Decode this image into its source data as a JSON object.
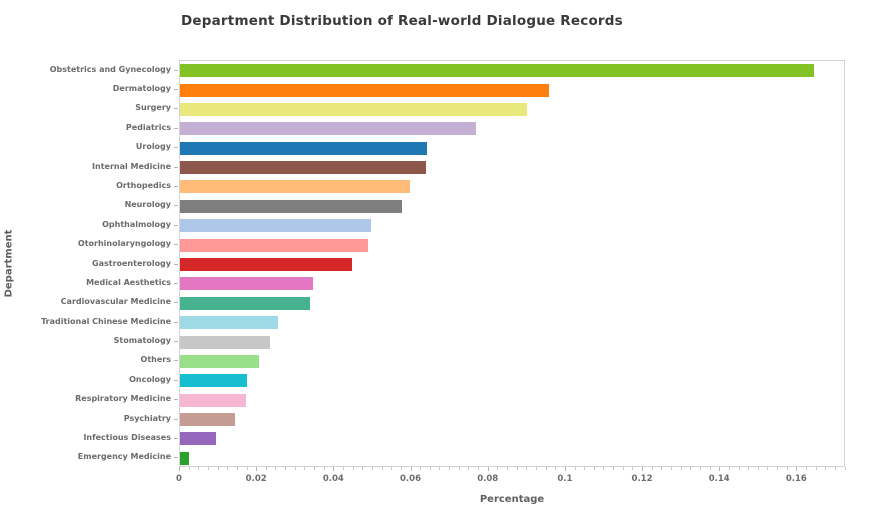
{
  "title": "Department Distribution of Real-world Dialogue Records",
  "chart_data": {
    "type": "bar",
    "orientation": "horizontal",
    "title": "Department Distribution of Real-world Dialogue Records",
    "xlabel": "Percentage",
    "ylabel": "Department",
    "xlim": [
      0,
      0.1726
    ],
    "grid": false,
    "legend": "none",
    "x_major_ticks": [
      0,
      0.02,
      0.04,
      0.06,
      0.08,
      0.1,
      0.12,
      0.14,
      0.16
    ],
    "x_major_tick_labels": [
      "0",
      "0.02",
      "0.04",
      "0.06",
      "0.08",
      "0.1",
      "0.12",
      "0.14",
      "0.16"
    ],
    "x_minor_tick_step": 0.0025,
    "categories": [
      "Obstetrics and Gynecology",
      "Dermatology",
      "Surgery",
      "Pediatrics",
      "Urology",
      "Internal Medicine",
      "Orthopedics",
      "Neurology",
      "Ophthalmology",
      "Otorhinolaryngology",
      "Gastroenterology",
      "Medical Aesthetics",
      "Cardiovascular Medicine",
      "Traditional Chinese Medicine",
      "Stomatology",
      "Others",
      "Oncology",
      "Respiratory Medicine",
      "Psychiatry",
      "Infectious Diseases",
      "Emergency Medicine"
    ],
    "values": [
      0.1643,
      0.0957,
      0.0899,
      0.0768,
      0.064,
      0.0638,
      0.0597,
      0.0576,
      0.0496,
      0.0486,
      0.0445,
      0.0344,
      0.0336,
      0.0253,
      0.0233,
      0.0204,
      0.0173,
      0.017,
      0.0142,
      0.0093,
      0.0023
    ],
    "colors": [
      "#82c225",
      "#ff7f0e",
      "#e8e87c",
      "#c5b0d5",
      "#1f77b4",
      "#8c564b",
      "#ffbb78",
      "#7f7f7f",
      "#aec7e8",
      "#ff9896",
      "#d62728",
      "#e377c2",
      "#47b28f",
      "#9edae5",
      "#c7c7c7",
      "#98df8a",
      "#17becf",
      "#f7b6d2",
      "#c49c94",
      "#9467bd",
      "#2ca02c"
    ],
    "axis_colors": {
      "spine": "#d4d4d4",
      "tick": "#b5b5b5",
      "tick_label": "#6b6b6b",
      "axis_label": "#5f5f5f",
      "title": "#3a3a3a"
    }
  }
}
